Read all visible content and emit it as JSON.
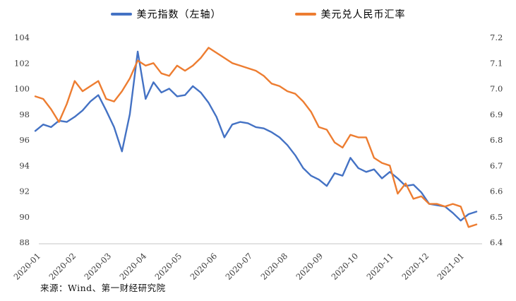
{
  "source": "来源：Wind、第一财经研究院",
  "chart_data": {
    "type": "line",
    "title": "",
    "legend_position": "top-center",
    "grid": "bottom-line-only",
    "x_tick_labels": [
      "2020-01",
      "2020-02",
      "2020-03",
      "2020-04",
      "2020-05",
      "2020-06",
      "2020-07",
      "2020-08",
      "2020-09",
      "2020-10",
      "2020-11",
      "2020-12",
      "2021-01"
    ],
    "x_span_months": [
      0,
      12.5
    ],
    "y_axis_left": {
      "min": 88,
      "max": 104,
      "tick_labels": [
        "104",
        "102",
        "100",
        "98",
        "96",
        "94",
        "92",
        "90",
        "88"
      ]
    },
    "y_axis_right": {
      "min": 6.4,
      "max": 7.2,
      "tick_labels": [
        "7.2",
        "7.1",
        "7.0",
        "6.9",
        "6.8",
        "6.7",
        "6.6",
        "6.5",
        "6.4"
      ]
    },
    "series": [
      {
        "name": "美元指数（左轴）",
        "axis": "left",
        "color": "#4472C4",
        "values": [
          96.7,
          97.2,
          97.0,
          97.5,
          97.4,
          97.8,
          98.3,
          99.0,
          99.5,
          98.3,
          97.0,
          95.1,
          98.0,
          102.9,
          99.2,
          100.5,
          99.7,
          100.0,
          99.4,
          99.5,
          100.2,
          99.7,
          98.9,
          97.8,
          96.2,
          97.2,
          97.4,
          97.3,
          97.0,
          96.9,
          96.6,
          96.2,
          95.6,
          94.8,
          93.8,
          93.2,
          92.9,
          92.4,
          93.4,
          93.2,
          94.6,
          93.8,
          93.5,
          93.7,
          93.0,
          93.5,
          93.0,
          92.4,
          92.5,
          91.9,
          91.0,
          90.9,
          90.8,
          90.3,
          89.7,
          90.2,
          90.4
        ]
      },
      {
        "name": "美元兑人民币汇率",
        "axis": "right",
        "color": "#ED7D31",
        "values": [
          6.97,
          6.96,
          6.92,
          6.87,
          6.94,
          7.03,
          6.99,
          7.01,
          7.03,
          6.96,
          6.95,
          6.99,
          7.04,
          7.11,
          7.09,
          7.1,
          7.06,
          7.05,
          7.09,
          7.07,
          7.09,
          7.12,
          7.16,
          7.14,
          7.12,
          7.1,
          7.09,
          7.08,
          7.07,
          7.05,
          7.02,
          7.01,
          6.99,
          6.98,
          6.95,
          6.91,
          6.85,
          6.84,
          6.79,
          6.77,
          6.82,
          6.81,
          6.81,
          6.73,
          6.71,
          6.7,
          6.59,
          6.63,
          6.57,
          6.58,
          6.55,
          6.55,
          6.54,
          6.55,
          6.54,
          6.46,
          6.47
        ]
      }
    ]
  }
}
